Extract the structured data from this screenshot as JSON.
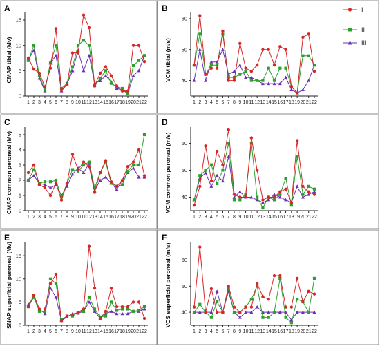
{
  "colors": {
    "I": "#d62728",
    "II": "#2ca02c",
    "III": "#6a2fb0"
  },
  "legend": [
    {
      "name": "I",
      "marker": "circle"
    },
    {
      "name": "II",
      "marker": "square"
    },
    {
      "name": "III",
      "marker": "triangle"
    }
  ],
  "chart_data": [
    {
      "panel": "A",
      "type": "line",
      "ylabel": "CMAP tibial (Mv)",
      "x": [
        1,
        2,
        3,
        4,
        5,
        6,
        7,
        8,
        9,
        10,
        11,
        12,
        13,
        14,
        15,
        16,
        17,
        18,
        19,
        20,
        21,
        22
      ],
      "yticks": [
        0,
        5,
        10,
        15
      ],
      "ylim": [
        0,
        16.5
      ],
      "series": [
        {
          "name": "I",
          "values": [
            7.5,
            5.3,
            4.5,
            1.8,
            5.5,
            13.3,
            1.2,
            2.3,
            8.5,
            8.5,
            16.0,
            13.5,
            2.0,
            4.5,
            5.8,
            4.0,
            2.0,
            1.0,
            1.0,
            10.0,
            10.0,
            6.8
          ]
        },
        {
          "name": "II",
          "values": [
            7.0,
            10.0,
            4.0,
            1.2,
            6.5,
            10.0,
            1.5,
            2.5,
            5.8,
            10.0,
            11.0,
            10.0,
            2.0,
            3.5,
            5.0,
            2.5,
            1.8,
            1.5,
            0.5,
            6.0,
            7.0,
            8.0
          ]
        },
        {
          "name": "III",
          "values": [
            7.2,
            9.0,
            3.5,
            1.0,
            6.5,
            8.0,
            1.0,
            2.3,
            5.0,
            9.0,
            5.0,
            8.0,
            2.5,
            3.0,
            4.0,
            2.8,
            1.5,
            1.2,
            0.5,
            4.0,
            5.0,
            8.0
          ]
        }
      ]
    },
    {
      "panel": "B",
      "type": "line",
      "ylabel": "VCM tibial (m/s)",
      "x": [
        1,
        2,
        3,
        4,
        5,
        6,
        7,
        8,
        9,
        10,
        11,
        12,
        13,
        14,
        15,
        16,
        17,
        18,
        19,
        20,
        21,
        22
      ],
      "yticks": [
        40,
        50,
        60
      ],
      "ylim": [
        35,
        62
      ],
      "series": [
        {
          "name": "I",
          "values": [
            45,
            61,
            42,
            44,
            44,
            56,
            40,
            40,
            52,
            44,
            43,
            45,
            50,
            50,
            45,
            51,
            50,
            38,
            36,
            54,
            55,
            43
          ]
        },
        {
          "name": "II",
          "values": [
            45,
            55,
            42,
            45,
            45,
            55,
            41,
            41,
            42,
            43,
            40,
            40,
            40,
            44,
            40,
            44,
            44,
            38,
            36,
            48,
            48,
            45
          ]
        },
        {
          "name": "III",
          "values": [
            40,
            50,
            40,
            46,
            46,
            50,
            42,
            43,
            45,
            41,
            41,
            40,
            39,
            39,
            39,
            39,
            41,
            37,
            36,
            37,
            40,
            45
          ]
        }
      ]
    },
    {
      "panel": "C",
      "type": "line",
      "ylabel": "CMAP common peroneal (Mv)",
      "x": [
        1,
        2,
        3,
        4,
        5,
        6,
        7,
        8,
        9,
        10,
        11,
        12,
        13,
        14,
        15,
        16,
        17,
        18,
        19,
        20,
        21,
        22
      ],
      "yticks": [
        0,
        1,
        2,
        3,
        4,
        5
      ],
      "ylim": [
        0,
        5.5
      ],
      "series": [
        {
          "name": "I",
          "values": [
            2.5,
            3.0,
            1.7,
            1.5,
            1.0,
            1.8,
            0.7,
            1.8,
            3.7,
            2.7,
            3.2,
            2.9,
            1.2,
            2.5,
            3.3,
            1.9,
            1.6,
            2.0,
            2.9,
            3.2,
            4.0,
            2.3
          ]
        },
        {
          "name": "II",
          "values": [
            2.0,
            2.7,
            1.8,
            1.9,
            1.9,
            2.0,
            0.9,
            1.8,
            2.7,
            2.6,
            3.0,
            3.2,
            1.5,
            2.5,
            3.2,
            1.8,
            1.6,
            1.7,
            2.6,
            3.0,
            3.0,
            5.0
          ]
        },
        {
          "name": "III",
          "values": [
            2.0,
            2.3,
            1.8,
            1.7,
            1.5,
            1.7,
            1.0,
            1.6,
            2.4,
            2.8,
            2.5,
            3.1,
            1.3,
            2.0,
            2.2,
            1.8,
            1.4,
            2.0,
            2.5,
            2.8,
            2.2,
            2.2
          ]
        }
      ]
    },
    {
      "panel": "D",
      "type": "line",
      "ylabel": "VCM common peroneal (m/s)",
      "x": [
        1,
        2,
        3,
        4,
        5,
        6,
        7,
        8,
        9,
        10,
        11,
        12,
        13,
        14,
        15,
        16,
        17,
        18,
        19,
        20,
        21,
        22
      ],
      "yticks": [
        40,
        50,
        60
      ],
      "ylim": [
        35,
        66
      ],
      "series": [
        {
          "name": "I",
          "values": [
            37,
            44,
            59,
            46,
            57,
            52,
            65,
            41,
            40,
            40,
            62,
            50,
            39,
            40,
            40,
            42,
            43,
            38,
            61,
            44,
            42,
            41
          ]
        },
        {
          "name": "II",
          "values": [
            39,
            48,
            50,
            52,
            45,
            50,
            60,
            39,
            39,
            41,
            60,
            40,
            36,
            40,
            39,
            41,
            47,
            37,
            55,
            41,
            44,
            43
          ]
        },
        {
          "name": "III",
          "values": [
            39,
            47,
            49,
            44,
            48,
            46,
            55,
            40,
            42,
            40,
            40,
            39,
            38,
            39,
            41,
            40,
            39,
            38,
            44,
            40,
            41,
            42
          ]
        }
      ]
    },
    {
      "panel": "E",
      "type": "line",
      "ylabel": "SNAP superficial peroneal (Mv)",
      "x": [
        1,
        2,
        3,
        4,
        5,
        6,
        7,
        8,
        9,
        10,
        11,
        12,
        13,
        14,
        15,
        16,
        17,
        18,
        19,
        20,
        21,
        22
      ],
      "yticks": [
        0,
        5,
        10,
        15
      ],
      "ylim": [
        0,
        18
      ],
      "series": [
        {
          "name": "I",
          "values": [
            4.0,
            6.5,
            3.5,
            3.5,
            9.0,
            11.0,
            1.0,
            2.0,
            2.3,
            2.8,
            3.5,
            17.0,
            8.0,
            1.5,
            3.0,
            8.0,
            4.0,
            4.0,
            4.0,
            5.0,
            5.0,
            1.5
          ]
        },
        {
          "name": "II",
          "values": [
            4.0,
            6.0,
            3.0,
            3.0,
            10.0,
            9.0,
            1.2,
            2.0,
            2.0,
            2.8,
            3.0,
            6.0,
            3.5,
            1.8,
            2.0,
            5.0,
            3.2,
            3.5,
            3.5,
            3.0,
            3.2,
            4.0
          ]
        },
        {
          "name": "III",
          "values": [
            4.5,
            6.0,
            3.5,
            2.5,
            8.0,
            6.0,
            1.0,
            1.8,
            2.5,
            2.6,
            3.0,
            5.0,
            3.0,
            1.5,
            2.5,
            3.0,
            2.5,
            2.5,
            2.5,
            3.0,
            3.0,
            3.5
          ]
        }
      ]
    },
    {
      "panel": "F",
      "type": "line",
      "ylabel": "VCS superficial peroneal (m/s)",
      "x": [
        1,
        2,
        3,
        4,
        5,
        6,
        7,
        8,
        9,
        10,
        11,
        12,
        13,
        14,
        15,
        16,
        17,
        18,
        19,
        20,
        21,
        22
      ],
      "yticks": [
        40,
        50,
        60
      ],
      "ylim": [
        35,
        67
      ],
      "series": [
        {
          "name": "I",
          "values": [
            42,
            65,
            40,
            49,
            40,
            40,
            50,
            42,
            40,
            42,
            42,
            51,
            46,
            45,
            54,
            54,
            42,
            42,
            53,
            44,
            48,
            47
          ]
        },
        {
          "name": "II",
          "values": [
            40,
            43,
            40,
            38,
            44,
            40,
            49,
            40,
            40,
            42,
            45,
            50,
            38,
            38,
            40,
            53,
            38,
            36,
            45,
            44,
            40,
            53
          ]
        },
        {
          "name": "III",
          "values": [
            40,
            40,
            40,
            40,
            48,
            40,
            48,
            40,
            38,
            40,
            40,
            42,
            40,
            40,
            40,
            40,
            40,
            37,
            40,
            40,
            40,
            40
          ]
        }
      ]
    }
  ]
}
